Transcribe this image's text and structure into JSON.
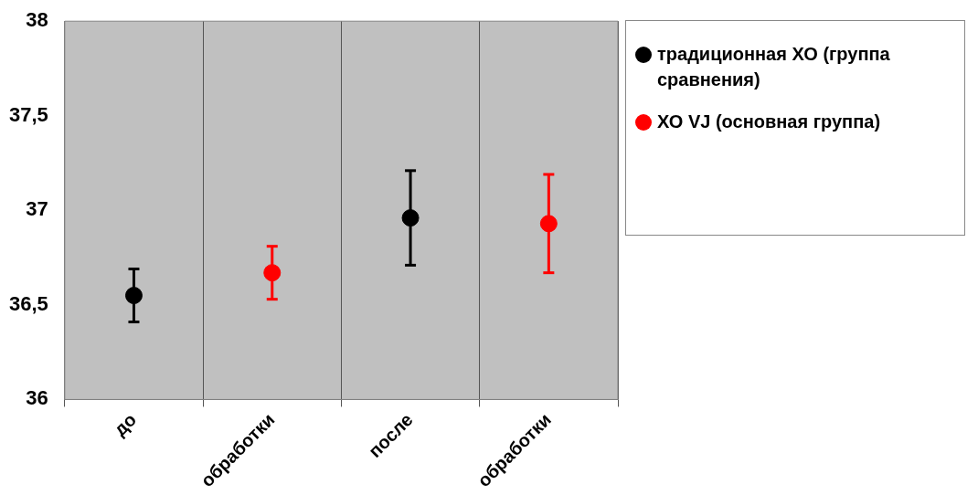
{
  "chart_data": {
    "type": "scatter",
    "categories": [
      "до",
      "обработки",
      "после",
      "обработки"
    ],
    "series": [
      {
        "name": "традиционная ХО (группа сравнения)",
        "color": "#000000",
        "values": [
          36.55,
          null,
          36.96,
          null
        ],
        "errors": [
          0.14,
          null,
          0.25,
          null
        ]
      },
      {
        "name": "ХО VJ (основная группа)",
        "color": "#ff0000",
        "values": [
          null,
          36.67,
          null,
          36.93
        ],
        "errors": [
          null,
          0.14,
          null,
          0.26
        ]
      }
    ],
    "ylim": [
      36,
      38
    ],
    "yticks": [
      36,
      {
        "value": 36.5,
        "label": "36,5"
      },
      37,
      {
        "value": 37.5,
        "label": "37,5"
      },
      38
    ],
    "grid": "x",
    "legend": "top right",
    "marker": "circle"
  }
}
